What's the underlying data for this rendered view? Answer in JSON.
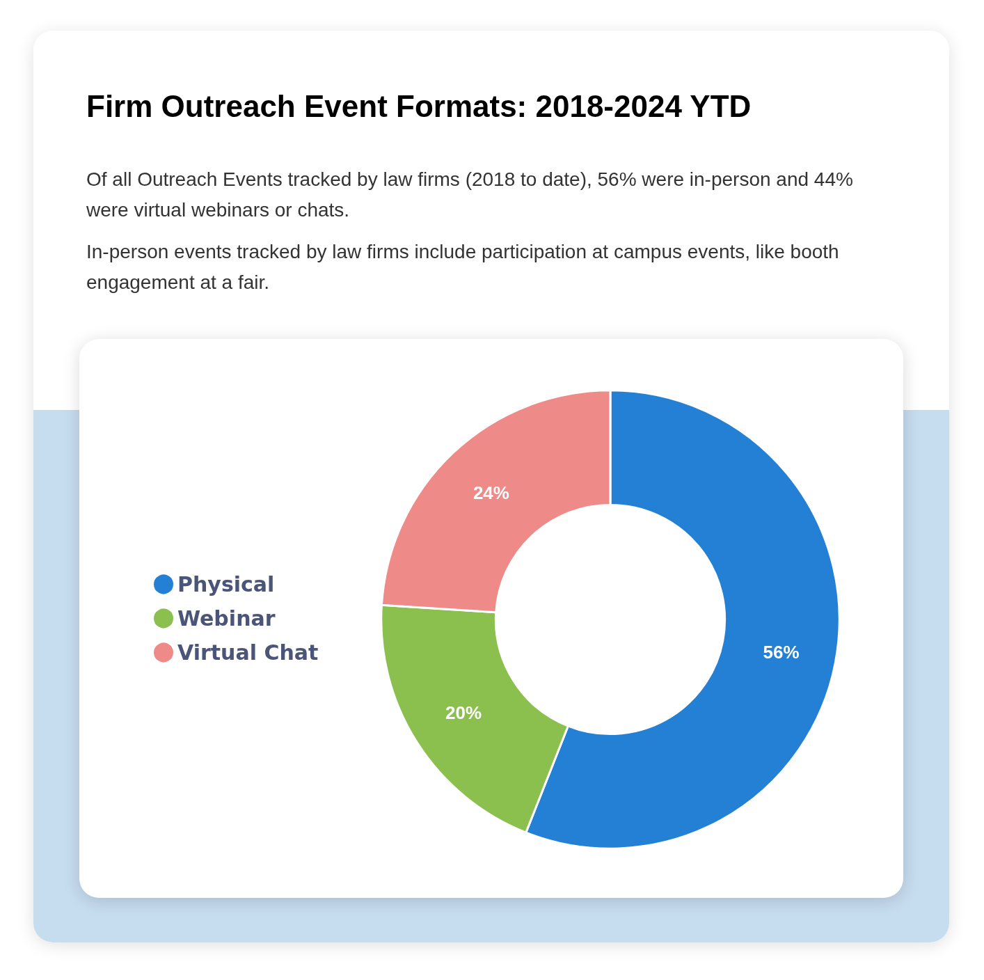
{
  "chart_data": {
    "type": "donut",
    "title": "Firm Outreach Event Formats: 2018-2024 YTD",
    "subtitle": "Of all Outreach Events tracked by law firms (2018 to date), 56% were in-person and 44% were virtual webinars or chats.",
    "annotations": [
      "In-person events tracked by law firms include participation at campus events, like booth engagement at a fair."
    ],
    "categories": [
      "Physical",
      "Webinar",
      "Virtual Chat"
    ],
    "values": [
      56,
      20,
      24
    ],
    "value_labels": [
      "56%",
      "20%",
      "24%"
    ],
    "colors": [
      "#2480d4",
      "#8bc04f",
      "#ee8a88"
    ],
    "legend": "left"
  }
}
